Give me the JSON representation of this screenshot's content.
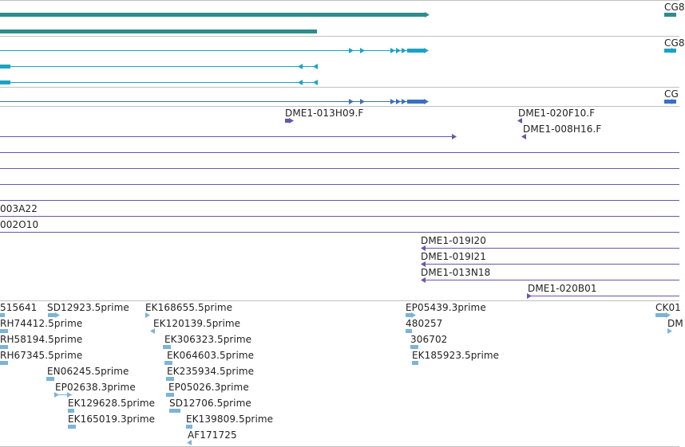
{
  "colors": {
    "background": "#ffffff",
    "divider": "#c0c0c0",
    "gene_teal": "#2e8c8c",
    "gene_cyan": "#1ba3c4",
    "gene_blue": "#3a6fc4",
    "clone_purple": "#6b55a8",
    "est_lightblue": "#7cb4d8",
    "text": "#222222"
  },
  "tracks": {
    "genes": {
      "labels": [
        "CG8",
        "CG8",
        "CG"
      ]
    },
    "clones": {
      "labels": [
        "DME1-013H09.F",
        "DME1-020F10.F",
        "DME1-008H16.F",
        "003A22",
        "002O10",
        "DME1-019I20",
        "DME1-019I21",
        "DME1-013N18",
        "DME1-020B01"
      ]
    },
    "ests": {
      "labels": [
        "515641",
        "SD12923.5prime",
        "EK168655.5prime",
        "EP05439.3prime",
        "CK01",
        "RH74412.5prime",
        "EK120139.5prime",
        "480257",
        "DM",
        "RH58194.5prime",
        "EK306323.5prime",
        "306702",
        "RH67345.5prime",
        "EK064603.5prime",
        "EK185923.5prime",
        "EN06245.5prime",
        "EK235934.5prime",
        "EP02638.3prime",
        "EP05026.3prime",
        "EK129628.5prime",
        "SD12706.5prime",
        "EK165019.3prime",
        "EK139809.5prime",
        "AF171725"
      ]
    }
  }
}
